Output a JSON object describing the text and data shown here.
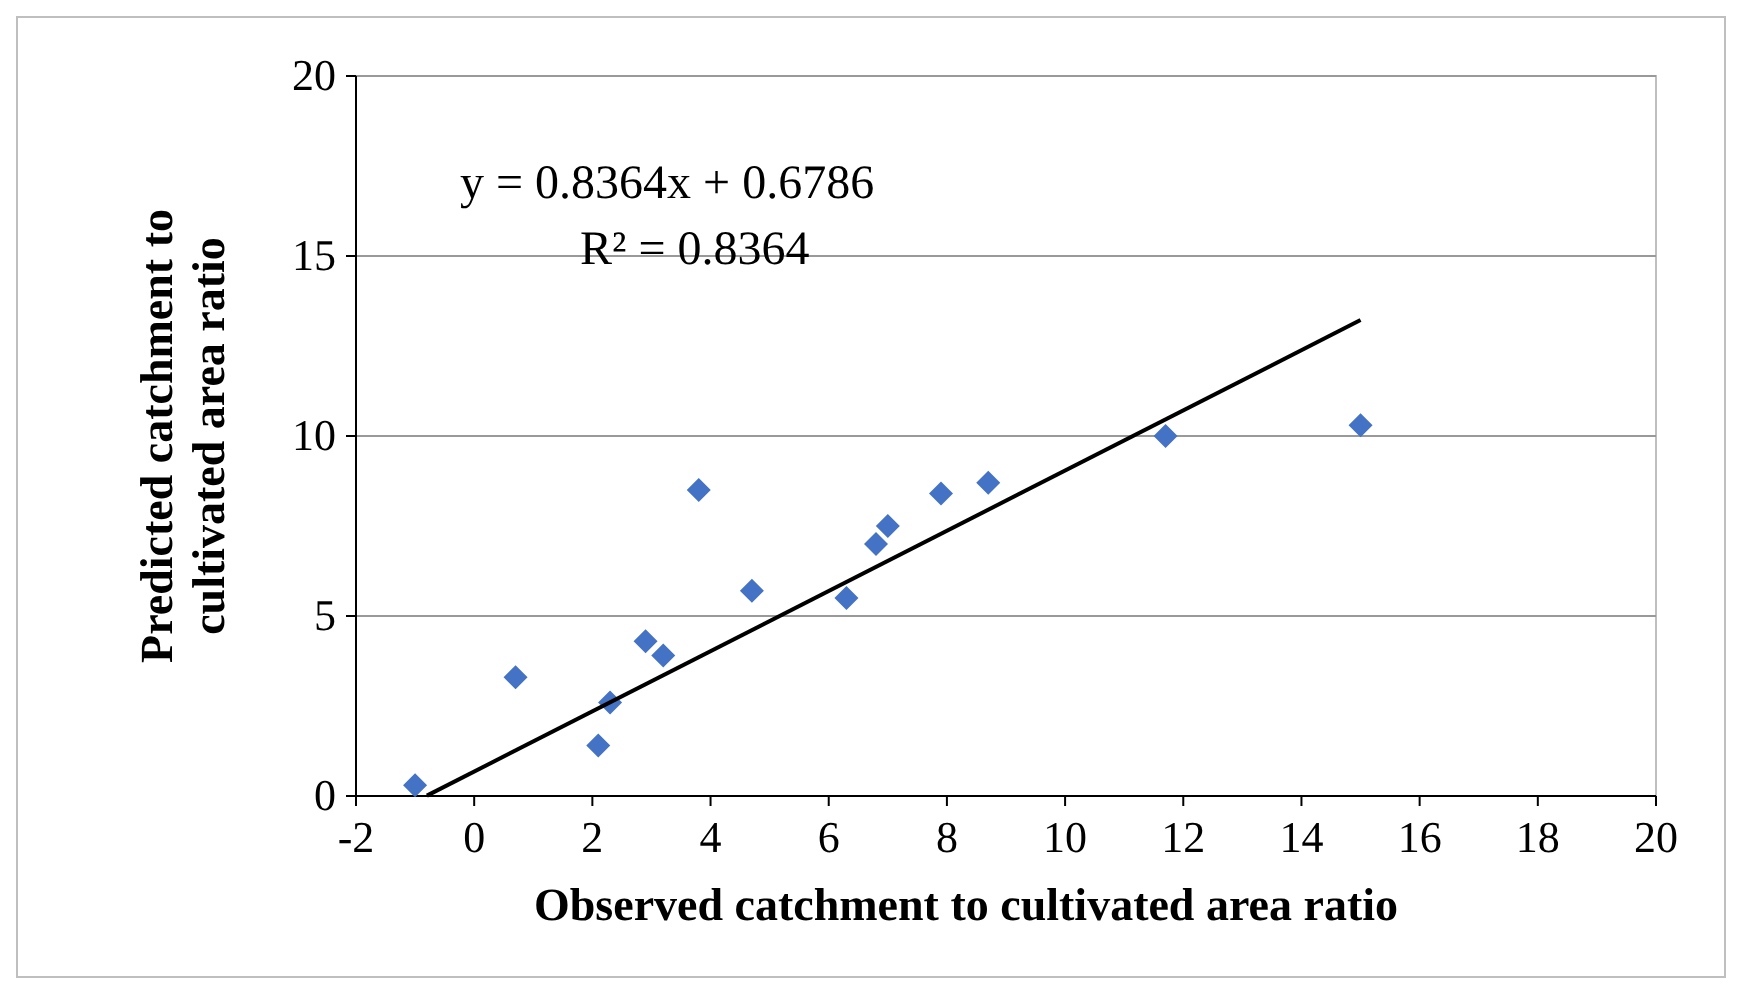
{
  "chart_data": {
    "type": "scatter",
    "xlabel": "Observed  catchment to cultivated area ratio",
    "ylabel": "Predicted catchment to cultivated area ratio",
    "annotations": [
      "y = 0.8364x + 0.6786",
      "R² = 0.8364"
    ],
    "xlim": [
      -2,
      20
    ],
    "xticks": [
      -2,
      0,
      2,
      4,
      6,
      8,
      10,
      12,
      14,
      16,
      18,
      20
    ],
    "ylim": [
      0,
      20
    ],
    "yticks": [
      0,
      5,
      10,
      15,
      20
    ],
    "grid": "y",
    "marker": "diamond",
    "series": [
      {
        "color": "#4472c4",
        "x": [
          -1.0,
          0.7,
          2.1,
          2.3,
          2.9,
          3.2,
          3.8,
          4.7,
          6.3,
          6.8,
          7.0,
          7.9,
          8.7,
          11.7,
          15.0
        ],
        "values": [
          0.3,
          3.3,
          1.4,
          2.6,
          4.3,
          3.9,
          8.5,
          5.7,
          5.5,
          7.0,
          7.5,
          8.4,
          8.7,
          10.0,
          10.3
        ]
      },
      {
        "type": "line",
        "marker": "none",
        "color": "#000000",
        "x": [
          -0.8,
          15.0
        ],
        "values": [
          0.01,
          13.22
        ]
      }
    ]
  }
}
